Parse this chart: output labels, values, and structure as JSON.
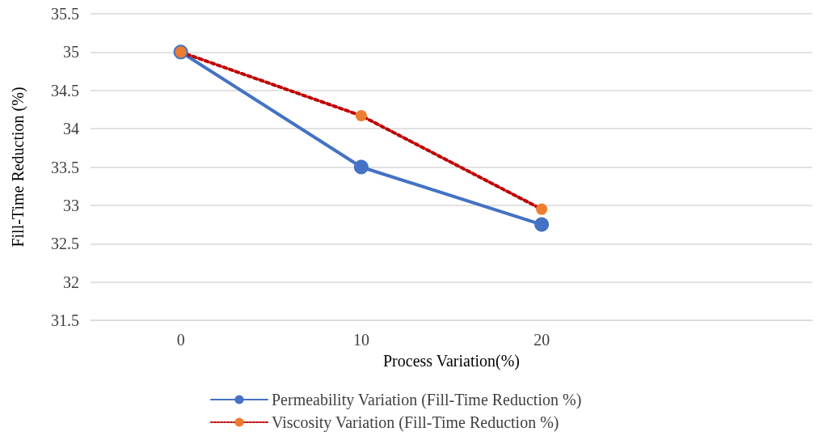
{
  "chart_data": {
    "type": "line",
    "xlabel": "Process Variation(%)",
    "ylabel": "Fill-Time Reduction (%)",
    "categories": [
      "0",
      "10",
      "20",
      null
    ],
    "series": [
      {
        "name": "Permeability Variation (Fill-Time Reduction %)",
        "color": "#4472c4",
        "line_style": "solid",
        "values": [
          35,
          33.5,
          32.75,
          null
        ]
      },
      {
        "name": "Viscosity Variation (Fill-Time Reduction %)",
        "color": "#c00000",
        "colors": [
          "#ed7d31",
          "#ed7d31",
          "#ed7d31",
          null
        ],
        "line_style": "dotted",
        "values": [
          35,
          34.17,
          32.95,
          null
        ]
      }
    ],
    "ylim": [
      31.5,
      35.5
    ],
    "yticks": [
      31.5,
      32,
      32.5,
      33,
      33.5,
      34,
      34.5,
      35,
      35.5
    ],
    "grid": "y",
    "legend": "bottom",
    "marker": "circle"
  }
}
